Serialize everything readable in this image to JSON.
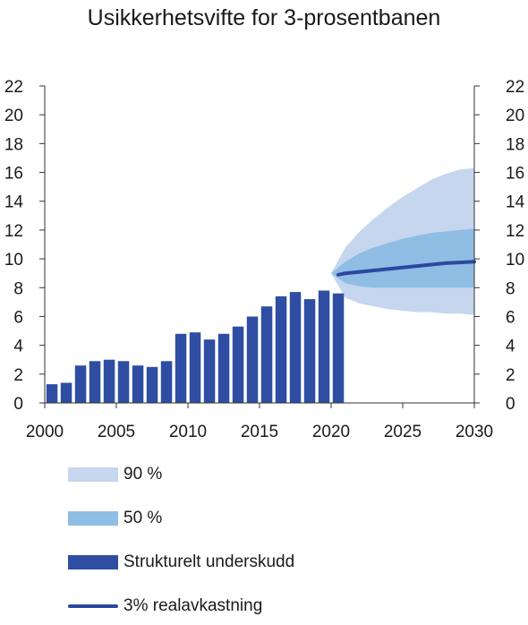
{
  "chart_data": {
    "type": "bar",
    "title": "Usikkerhetsvifte for 3-prosentbanen",
    "xlim": [
      2000,
      2030
    ],
    "ylim": [
      0,
      22
    ],
    "yticks": [
      0,
      2,
      4,
      6,
      8,
      10,
      12,
      14,
      16,
      18,
      20,
      22
    ],
    "xticks": [
      2000,
      2005,
      2010,
      2015,
      2020,
      2025,
      2030
    ],
    "bars": {
      "name": "Strukturelt underskudd",
      "x": [
        2000,
        2001,
        2002,
        2003,
        2004,
        2005,
        2006,
        2007,
        2008,
        2009,
        2010,
        2011,
        2012,
        2013,
        2014,
        2015,
        2016,
        2017,
        2018,
        2019,
        2020
      ],
      "values": [
        1.3,
        1.4,
        2.6,
        2.9,
        3.0,
        2.9,
        2.6,
        2.5,
        2.9,
        4.8,
        4.9,
        4.4,
        4.8,
        5.3,
        6.0,
        6.7,
        7.4,
        7.7,
        7.2,
        7.8,
        7.6
      ]
    },
    "fan": [
      {
        "name": "90 %",
        "x": [
          2020,
          2021,
          2022,
          2023,
          2024,
          2025,
          2026,
          2027,
          2028,
          2029,
          2030
        ],
        "upper": [
          9.0,
          10.8,
          11.9,
          12.8,
          13.6,
          14.3,
          14.9,
          15.5,
          15.9,
          16.2,
          16.3
        ],
        "lower": [
          9.0,
          7.3,
          6.9,
          6.7,
          6.5,
          6.4,
          6.3,
          6.3,
          6.2,
          6.2,
          6.1
        ]
      },
      {
        "name": "50 %",
        "x": [
          2020,
          2021,
          2022,
          2023,
          2024,
          2025,
          2026,
          2027,
          2028,
          2029,
          2030
        ],
        "upper": [
          9.0,
          9.8,
          10.4,
          10.8,
          11.1,
          11.4,
          11.6,
          11.8,
          11.9,
          12.0,
          12.1
        ],
        "lower": [
          9.0,
          8.3,
          8.1,
          8.0,
          8.0,
          8.0,
          8.0,
          8.0,
          8.0,
          8.0,
          8.0
        ]
      }
    ],
    "line": {
      "name": "3% realavkastning",
      "x": [
        2020,
        2021,
        2022,
        2023,
        2024,
        2025,
        2026,
        2027,
        2028,
        2029,
        2030
      ],
      "values": [
        8.9,
        9.0,
        9.1,
        9.2,
        9.3,
        9.4,
        9.5,
        9.6,
        9.7,
        9.75,
        9.8
      ]
    },
    "legend": [
      "90 %",
      "50 %",
      "Strukturelt underskudd",
      "3% realavkastning"
    ],
    "legend_position": "bottom",
    "colors": {
      "fan90": "#c5d6ee",
      "fan50": "#8fbde4",
      "bars": "#2f4ea3",
      "line": "#2a48a0",
      "axis": "#333333"
    }
  }
}
